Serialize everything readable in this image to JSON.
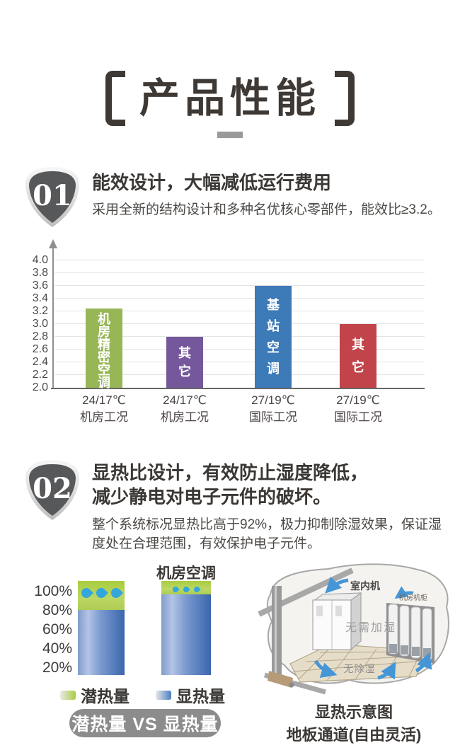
{
  "page": {
    "title": "产品性能"
  },
  "section1": {
    "number": "01",
    "heading": "能效设计，大幅减低运行费用",
    "body": "采用全新的结构设计和多种名优核心零部件，能效比≥3.2。"
  },
  "section2": {
    "number": "02",
    "heading_line1": "显热比设计，有效防止湿度降低，",
    "heading_line2": "减少静电对电子元件的破坏。",
    "body": "整个系统标况显热比高于92%，极力抑制除湿效果，保证湿度处在合理范围，有效保护电子元件。"
  },
  "chart_data": [
    {
      "type": "bar",
      "title": "",
      "categories": [
        "24/17℃ 机房工况",
        "24/17℃ 机房工况",
        "27/19℃ 国际工况",
        "27/19℃ 国际工况"
      ],
      "values": [
        3.24,
        2.8,
        3.6,
        3.0
      ],
      "bar_labels": [
        "机房精密空调",
        "其它",
        "基站空调",
        "其它"
      ],
      "colors": [
        "#97b656",
        "#75589b",
        "#3d7ab8",
        "#c04449"
      ],
      "xlabel": "",
      "ylabel": "",
      "ylim": [
        2.0,
        4.0
      ],
      "ytick_step": 0.2,
      "grid": true,
      "legend_position": "none"
    },
    {
      "type": "bar",
      "subtype": "stacked-percent",
      "categories": [
        "",
        "机房空调"
      ],
      "series": [
        {
          "name": "显热量",
          "values": [
            78,
            95
          ]
        },
        {
          "name": "潜热量",
          "values": [
            22,
            5
          ]
        }
      ],
      "yticks": [
        "100%",
        "80%",
        "60%",
        "40%",
        "20%"
      ],
      "legend": [
        {
          "label": "潜热量",
          "color": "#a9cc3f"
        },
        {
          "label": "显热量",
          "color": "#4a7fc1"
        }
      ],
      "footer_badge": "潜热量 VS 显热量"
    }
  ],
  "illustration": {
    "labels": {
      "indoor_unit": "室内机",
      "cabinets": "机房机柜",
      "no_humidify": "无需加湿",
      "no_dehumidify": "无除湿"
    },
    "caption_line1": "显热示意图",
    "caption_line2": "地板通道(自由灵活)"
  },
  "colors": {
    "title_text": "#3e3935",
    "badge_fill": "#57585a",
    "pill_background": "#8c8c8c",
    "water_drop": "#33a7dd",
    "arrow_blue": "#4596d6"
  }
}
